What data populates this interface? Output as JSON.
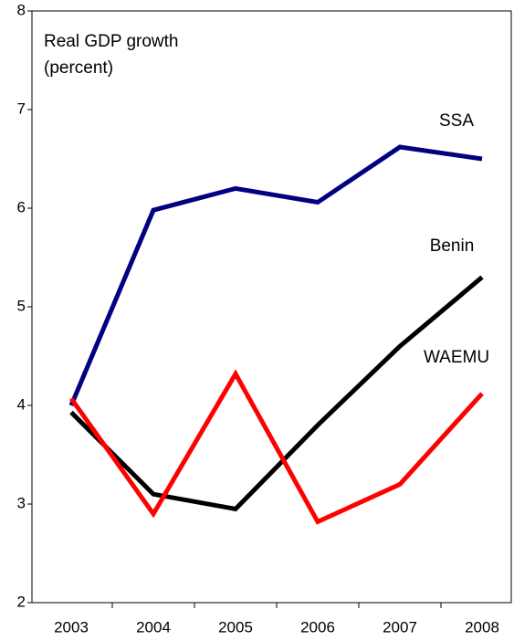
{
  "chart_data": {
    "type": "line",
    "title": [
      "Real GDP growth",
      "(percent)"
    ],
    "categories": [
      "2003",
      "2004",
      "2005",
      "2006",
      "2007",
      "2008"
    ],
    "series": [
      {
        "name": "SSA",
        "color": "#000080",
        "values": [
          4.0,
          5.98,
          6.2,
          6.06,
          6.62,
          6.5
        ]
      },
      {
        "name": "Benin",
        "color": "#000000",
        "values": [
          3.93,
          3.1,
          2.95,
          3.8,
          4.6,
          5.3
        ]
      },
      {
        "name": "WAEMU",
        "color": "#ff0000",
        "values": [
          4.07,
          2.9,
          4.32,
          2.82,
          3.2,
          4.12
        ]
      }
    ],
    "ylim": [
      2,
      8
    ],
    "yticks": [
      2,
      3,
      4,
      5,
      6,
      7,
      8
    ],
    "grid": false
  }
}
